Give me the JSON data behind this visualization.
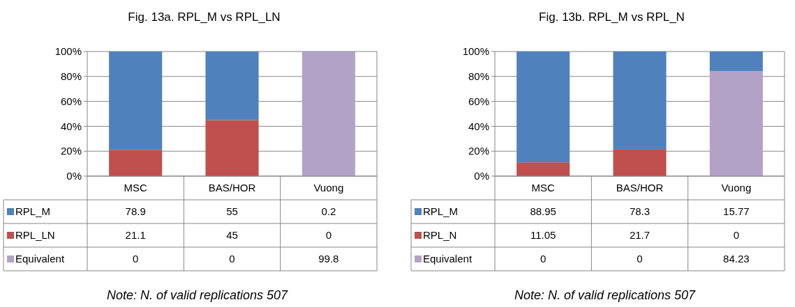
{
  "chart_data": [
    {
      "type": "bar",
      "title": "Fig. 13a. RPL_M vs RPL_LN",
      "categories": [
        "MSC",
        "BAS/HOR",
        "Vuong"
      ],
      "stacked": true,
      "data_labels": true,
      "grid": "y",
      "legend": "bottom",
      "ylim": [
        0,
        100
      ],
      "yticks": [
        {
          "value": 0,
          "label": "0%"
        },
        {
          "value": 20,
          "label": "20%"
        },
        {
          "value": 40,
          "label": "40%"
        },
        {
          "value": 60,
          "label": "60%"
        },
        {
          "value": 80,
          "label": "80%"
        },
        {
          "value": 100,
          "label": "100%"
        }
      ],
      "annotations": [
        "Note: N. of valid replications 507"
      ],
      "series": [
        {
          "name": "Equivalent",
          "color": "#b3a2c7",
          "values": [
            0,
            0,
            99.8
          ]
        },
        {
          "name": "RPL_LN",
          "color": "#c0504d",
          "values": [
            21.1,
            45,
            0
          ]
        },
        {
          "name": "RPL_M",
          "color": "#4f81bd",
          "values": [
            78.9,
            55,
            0.2
          ]
        }
      ]
    },
    {
      "type": "bar",
      "title": "Fig. 13b. RPL_M vs RPL_N",
      "categories": [
        "MSC",
        "BAS/HOR",
        "Vuong"
      ],
      "stacked": true,
      "data_labels": true,
      "grid": "y",
      "legend": "bottom",
      "ylim": [
        0,
        100
      ],
      "yticks": [
        {
          "value": 0,
          "label": "0%"
        },
        {
          "value": 20,
          "label": "20%"
        },
        {
          "value": 40,
          "label": "40%"
        },
        {
          "value": 60,
          "label": "60%"
        },
        {
          "value": 80,
          "label": "80%"
        },
        {
          "value": 100,
          "label": "100%"
        }
      ],
      "annotations": [
        "Note: N. of valid replications 507"
      ],
      "series": [
        {
          "name": "Equivalent",
          "color": "#b3a2c7",
          "values": [
            0,
            0,
            84.23
          ]
        },
        {
          "name": "RPL_N",
          "color": "#c0504d",
          "values": [
            11.05,
            21.7,
            0
          ]
        },
        {
          "name": "RPL_M",
          "color": "#4f81bd",
          "values": [
            88.95,
            78.3,
            15.77
          ]
        }
      ]
    }
  ]
}
